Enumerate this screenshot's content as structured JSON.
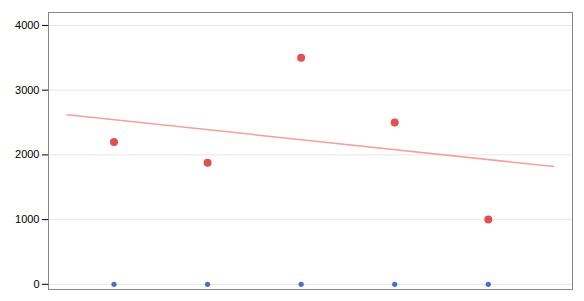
{
  "chart_data": {
    "type": "scatter",
    "series": [
      {
        "type": "line",
        "color": "#f4a0a0",
        "x": [
          0.5,
          5.7
        ],
        "values": [
          2620,
          1820
        ]
      },
      {
        "type": "scatter",
        "color": "#e05050",
        "x": [
          1,
          2,
          3,
          4,
          5
        ],
        "values": [
          2200,
          1880,
          3500,
          2500,
          1000
        ]
      },
      {
        "type": "scatter",
        "color": "#4472c4",
        "x": [
          1,
          2,
          3,
          4,
          5
        ],
        "values": [
          0,
          0,
          0,
          0,
          0
        ]
      }
    ],
    "xlim": [
      0.3,
      5.9
    ],
    "ylim": [
      -80,
      4200
    ],
    "yticks": [
      0,
      1000,
      2000,
      3000,
      4000
    ],
    "grid": true,
    "tick_labels": "y"
  }
}
